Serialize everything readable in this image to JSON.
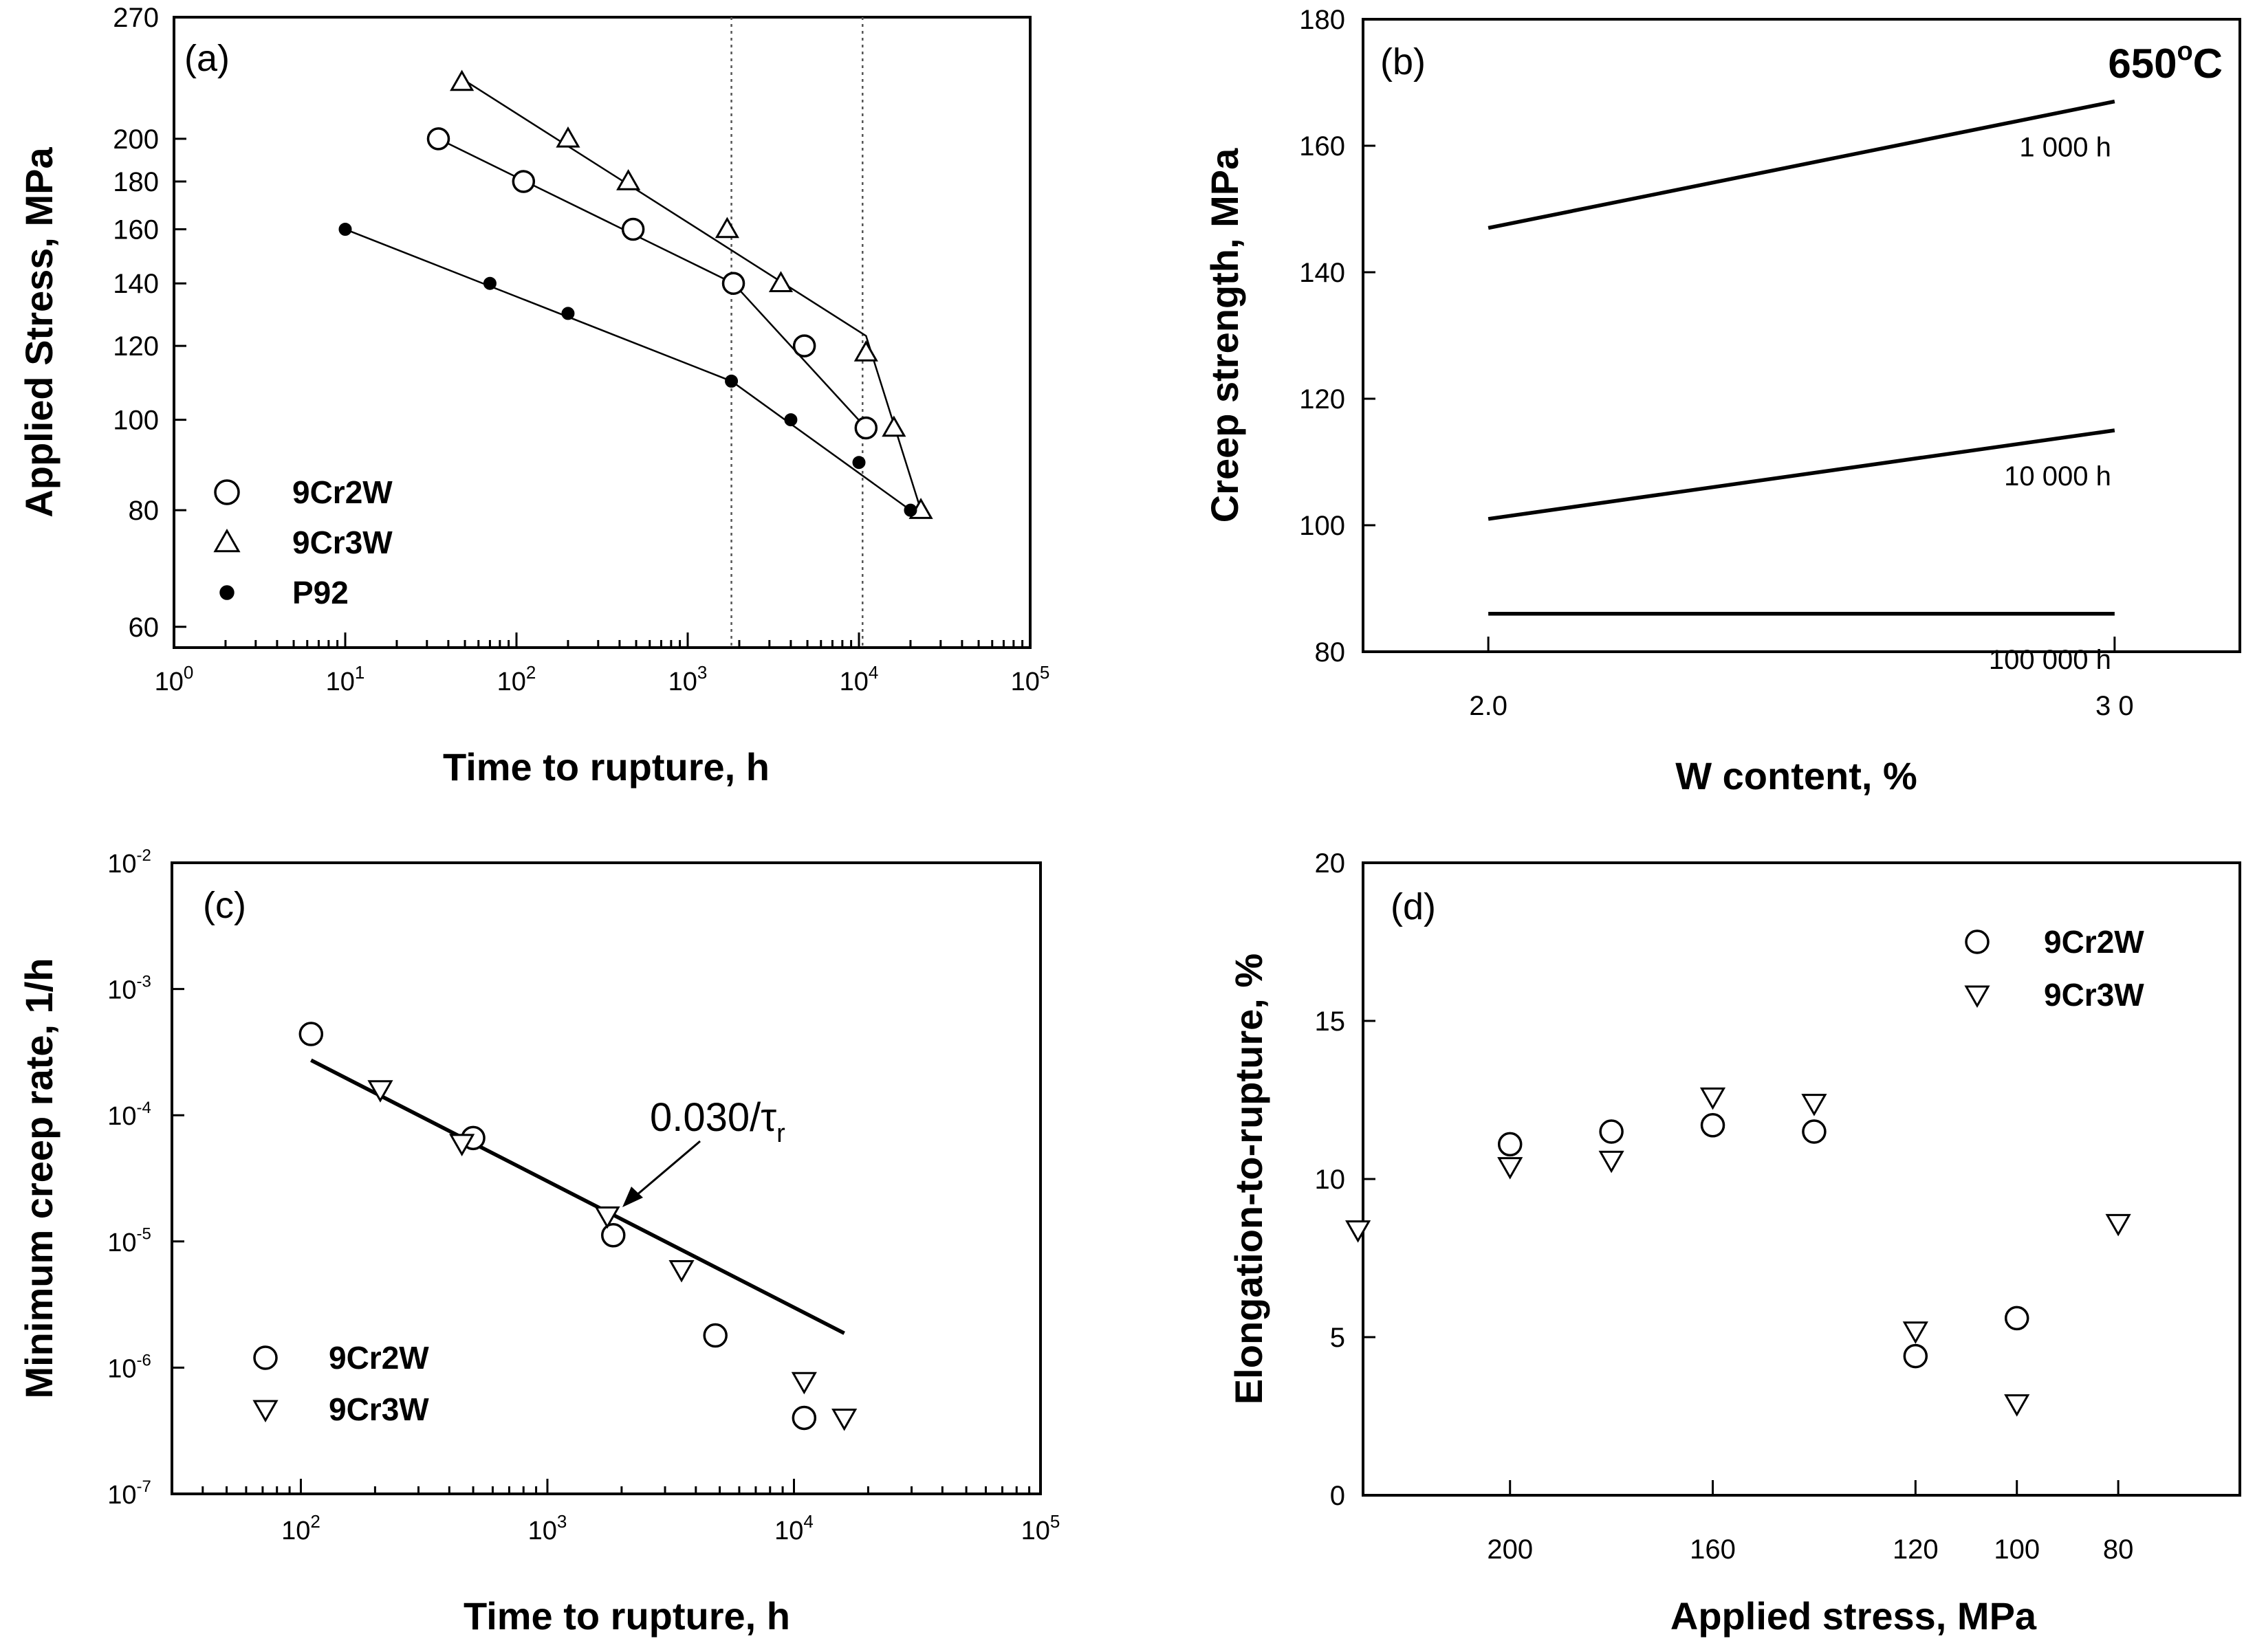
{
  "chart_data": [
    {
      "panel": "(a)",
      "type": "line+scatter",
      "xscale": "log",
      "xlabel": "Time to rupture, h",
      "ylabel": "Applied Stress, MPa",
      "xlim": [
        1,
        100000
      ],
      "ylim": [
        57,
        270
      ],
      "x_ticks": [
        [
          "10",
          "0"
        ],
        [
          "10",
          "1"
        ],
        [
          "10",
          "2"
        ],
        [
          "10",
          "3"
        ],
        [
          "10",
          "4"
        ],
        [
          "10",
          "5"
        ]
      ],
      "y_ticks": [
        "60",
        "80",
        "100",
        "120",
        "140",
        "160",
        "180",
        "200",
        "270"
      ],
      "legend": [
        {
          "label": "9Cr2W",
          "marker": "circle-open"
        },
        {
          "label": "9Cr3W",
          "marker": "triangle-up-open"
        },
        {
          "label": "P92",
          "marker": "circle-filled"
        }
      ],
      "series": [
        {
          "name": "9Cr2W",
          "marker": "circle-open",
          "points": [
            [
              35,
              200
            ],
            [
              110,
              180
            ],
            [
              480,
              160
            ],
            [
              1850,
              140
            ],
            [
              4800,
              120
            ],
            [
              11000,
              98
            ]
          ],
          "fit": [
            [
              35,
              200
            ],
            [
              1850,
              140
            ],
            [
              11000,
              98
            ]
          ]
        },
        {
          "name": "9Cr3W",
          "marker": "triangle-up-open",
          "points": [
            [
              48,
              230
            ],
            [
              200,
              200
            ],
            [
              450,
              180
            ],
            [
              1700,
              160
            ],
            [
              3500,
              140
            ],
            [
              11000,
              118
            ],
            [
              16000,
              98
            ],
            [
              23000,
              80
            ]
          ],
          "fit": [
            [
              48,
              232
            ],
            [
              11000,
              123
            ],
            [
              23000,
              80
            ]
          ]
        },
        {
          "name": "P92",
          "marker": "circle-filled",
          "points": [
            [
              10,
              160
            ],
            [
              70,
              140
            ],
            [
              200,
              130
            ],
            [
              1800,
              110
            ],
            [
              4000,
              100
            ],
            [
              10000,
              90
            ],
            [
              20000,
              80
            ]
          ],
          "fit": [
            [
              10,
              160
            ],
            [
              1800,
              110
            ],
            [
              20000,
              80
            ]
          ]
        }
      ],
      "vlines": [
        1800,
        10500
      ]
    },
    {
      "panel": "(b)",
      "type": "line",
      "xlabel": "W content, %",
      "ylabel": "Creep strength, MPa",
      "xlim": [
        1.8,
        3.2
      ],
      "ylim": [
        80,
        180
      ],
      "x_ticks": [
        "2.0",
        "3 0"
      ],
      "y_ticks": [
        "80",
        "100",
        "120",
        "140",
        "160",
        "180"
      ],
      "annotation": {
        "text": "650",
        "sup": "o",
        "unit": "C"
      },
      "series": [
        {
          "name": "1 000 h",
          "x": [
            2.0,
            3.0
          ],
          "values": [
            147,
            167
          ]
        },
        {
          "name": "10 000 h",
          "x": [
            2.0,
            3.0
          ],
          "values": [
            101,
            115
          ]
        },
        {
          "name": "100 000 h",
          "x": [
            2.0,
            3.0
          ],
          "values": [
            86,
            86
          ]
        }
      ]
    },
    {
      "panel": "(c)",
      "type": "scatter",
      "xscale": "log",
      "yscale": "log",
      "xlabel": "Time to rupture, h",
      "ylabel": "Minimum creep rate, 1/h",
      "xlim": [
        30,
        100000
      ],
      "ylim": [
        1e-07,
        0.01
      ],
      "x_ticks": [
        [
          "10",
          "2"
        ],
        [
          "10",
          "3"
        ],
        [
          "10",
          "4"
        ],
        [
          "10",
          "5"
        ]
      ],
      "y_ticks": [
        [
          "10",
          "-7"
        ],
        [
          "10",
          "-6"
        ],
        [
          "10",
          "-5"
        ],
        [
          "10",
          "-4"
        ],
        [
          "10",
          "-3"
        ],
        [
          "10",
          "-2"
        ]
      ],
      "legend": [
        {
          "label": "9Cr2W",
          "marker": "circle-open"
        },
        {
          "label": "9Cr3W",
          "marker": "triangle-down-open"
        }
      ],
      "series": [
        {
          "name": "9Cr2W",
          "marker": "circle-open",
          "points": [
            [
              110,
              0.00044
            ],
            [
              500,
              6.6e-05
            ],
            [
              1850,
              1.12e-05
            ],
            [
              4800,
              1.8e-06
            ],
            [
              11000,
              4e-07
            ]
          ]
        },
        {
          "name": "9Cr3W",
          "marker": "triangle-down-open",
          "points": [
            [
              210,
              0.00016
            ],
            [
              450,
              6e-05
            ],
            [
              1750,
              1.6e-05
            ],
            [
              3500,
              6e-06
            ],
            [
              11000,
              7.8e-07
            ],
            [
              16000,
              4e-07
            ]
          ]
        }
      ],
      "fit_line": {
        "label": "0.030/τ",
        "label_sub": "r",
        "constant": 0.03,
        "x_range": [
          110,
          16000
        ]
      }
    },
    {
      "panel": "(d)",
      "type": "scatter",
      "xlabel": "Applied stress, MPa",
      "ylabel": "Elongation-to-rupture, %",
      "xlim": [
        229,
        56
      ],
      "ylim": [
        0,
        20
      ],
      "x_ticks": [
        "200",
        "160",
        "120",
        "100",
        "80"
      ],
      "y_ticks": [
        "0",
        "5",
        "10",
        "15",
        "20"
      ],
      "legend": [
        {
          "label": "9Cr2W",
          "marker": "circle-open"
        },
        {
          "label": "9Cr3W",
          "marker": "triangle-down-open"
        }
      ],
      "series": [
        {
          "name": "9Cr2W",
          "marker": "circle-open",
          "points": [
            [
              200,
              11.1
            ],
            [
              180,
              11.5
            ],
            [
              160,
              11.7
            ],
            [
              140,
              11.5
            ],
            [
              120,
              4.4
            ],
            [
              100,
              5.6
            ]
          ]
        },
        {
          "name": "9Cr3W",
          "marker": "triangle-down-open",
          "points": [
            [
              230,
              8.4
            ],
            [
              200,
              10.4
            ],
            [
              180,
              10.6
            ],
            [
              160,
              12.6
            ],
            [
              140,
              12.4
            ],
            [
              120,
              5.2
            ],
            [
              100,
              2.9
            ],
            [
              80,
              8.6
            ]
          ]
        }
      ]
    }
  ]
}
